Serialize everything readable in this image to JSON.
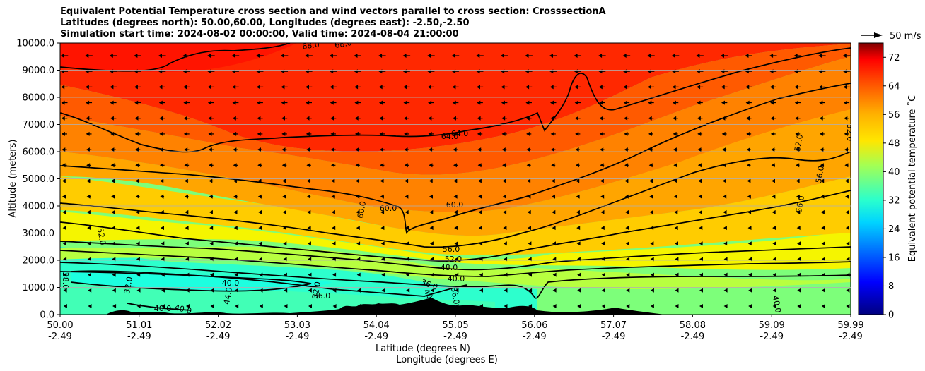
{
  "chart_data": {
    "type": "contourf",
    "title_lines": [
      "Equivalent Potential Temperature cross section and wind vectors parallel to cross section: CrosssectionA",
      "Latitudes (degrees north): 50.00,60.00, Longitudes (degrees east): -2.50,-2.50",
      "Simulation start time: 2024-08-02 00:00:00, Valid time: 2024-08-04 21:00:00"
    ],
    "ylabel": "Altitude (meters)",
    "xlabel_lat": "Latitude (degrees N)",
    "xlabel_lon": "Longitude (degrees E)",
    "ylim": [
      0,
      10000
    ],
    "y_ticks": [
      "0.0",
      "1000.0",
      "2000.0",
      "3000.0",
      "4000.0",
      "5000.0",
      "6000.0",
      "7000.0",
      "8000.0",
      "9000.0",
      "10000.0"
    ],
    "x_ticks": [
      {
        "lat": "50.00",
        "lon": "-2.49"
      },
      {
        "lat": "51.01",
        "lon": "-2.49"
      },
      {
        "lat": "52.02",
        "lon": "-2.49"
      },
      {
        "lat": "53.03",
        "lon": "-2.49"
      },
      {
        "lat": "54.04",
        "lon": "-2.49"
      },
      {
        "lat": "55.05",
        "lon": "-2.49"
      },
      {
        "lat": "56.06",
        "lon": "-2.49"
      },
      {
        "lat": "57.07",
        "lon": "-2.49"
      },
      {
        "lat": "58.08",
        "lon": "-2.49"
      },
      {
        "lat": "59.09",
        "lon": "-2.49"
      },
      {
        "lat": "59.99",
        "lon": "-2.49"
      }
    ],
    "colorbar": {
      "label": "Equivalent potential temperature ˚C",
      "ticks": [
        "0",
        "8",
        "16",
        "24",
        "32",
        "40",
        "48",
        "56",
        "64",
        "72"
      ],
      "range": [
        0,
        76
      ]
    },
    "wind_key": "50 m/s",
    "contour_labels": [
      "68.0",
      "68.0",
      "64.0",
      "64.0",
      "60.0",
      "60.0",
      "60.0",
      "56.0",
      "56.0",
      "56.0",
      "52.0",
      "52.0",
      "52.0",
      "52.0",
      "48.0",
      "44.0",
      "40.0",
      "40.0",
      "40.0",
      "40.0",
      "40.0",
      "40.0",
      "36.0",
      "36.0",
      "36.0",
      "32.0",
      "32.0",
      "28.0"
    ]
  }
}
